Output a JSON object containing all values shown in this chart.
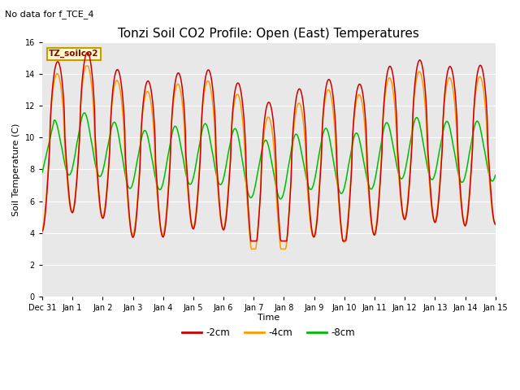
{
  "title": "Tonzi Soil CO2 Profile: Open (East) Temperatures",
  "subtitle": "No data for f_TCE_4",
  "xlabel": "Time",
  "ylabel": "Soil Temperature (C)",
  "ylim": [
    0,
    16
  ],
  "yticks": [
    0,
    2,
    4,
    6,
    8,
    10,
    12,
    14,
    16
  ],
  "legend_label": "TZ_soilco2",
  "legend_box_color": "#ffffcc",
  "legend_box_edge": "#cc9900",
  "series": [
    {
      "label": "-2cm",
      "color": "#cc0000"
    },
    {
      "label": "-4cm",
      "color": "#ff9900"
    },
    {
      "label": "-8cm",
      "color": "#00bb00"
    }
  ],
  "xtick_labels": [
    "Dec 31",
    "Jan 1",
    "Jan 2",
    "Jan 3",
    "Jan 4",
    "Jan 5",
    "Jan 6",
    "Jan 7",
    "Jan 8",
    "Jan 9",
    "Jan 10",
    "Jan 11",
    "Jan 12",
    "Jan 13",
    "Jan 14",
    "Jan 15"
  ],
  "n_days": 15,
  "plot_bg_color": "#e8e8e8",
  "fig_bg_color": "#ffffff",
  "title_fontsize": 11,
  "axis_label_fontsize": 8,
  "tick_fontsize": 7,
  "subtitle_fontsize": 8
}
